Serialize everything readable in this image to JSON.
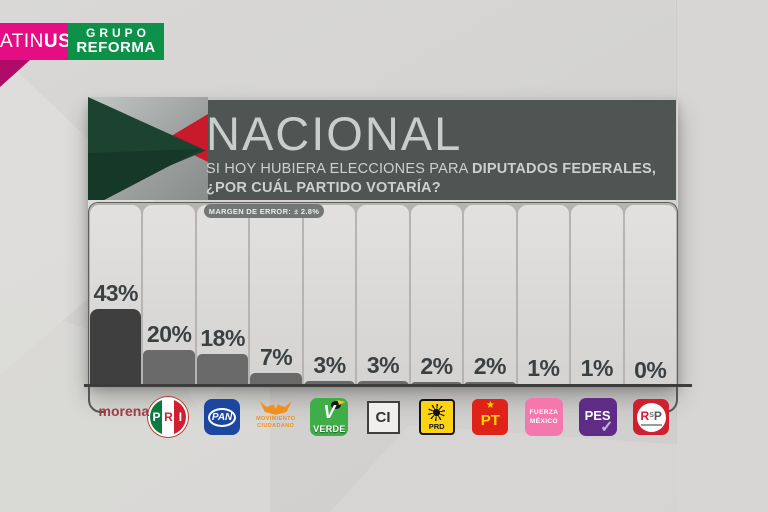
{
  "branding": {
    "latinus": {
      "text_regular": "ATIN",
      "text_bold": "US"
    },
    "grupo_reforma": {
      "top": "GRUPO",
      "bottom": "REFORMA"
    }
  },
  "header": {
    "title": "NACIONAL",
    "subtitle_regular": "SI HOY HUBIERA ELECCIONES PARA ",
    "subtitle_bold": "DIPUTADOS FEDERALES,",
    "subtitle_line2": "¿POR CUÁL PARTIDO VOTARÍA?"
  },
  "chart_data": {
    "type": "bar",
    "title": "NACIONAL",
    "question": "SI HOY HUBIERA ELECCIONES PARA DIPUTADOS FEDERALES, ¿POR CUÁL PARTIDO VOTARÍA?",
    "margin_of_error_label": "MARGEN DE ERROR:",
    "margin_of_error_value": "± 2.8%",
    "categories": [
      "morena",
      "PRI",
      "PAN",
      "Movimiento Ciudadano",
      "Verde",
      "CI",
      "PRD",
      "PT",
      "Fuerza México",
      "PES",
      "RSP"
    ],
    "values": [
      43,
      20,
      18,
      7,
      3,
      3,
      2,
      2,
      1,
      1,
      0
    ],
    "unit": "%",
    "ylim": [
      0,
      100
    ],
    "legend": "none",
    "grid": false,
    "highlight_category": "morena",
    "bar_color_highlight": "#3f3f3f",
    "bar_color_default": "#6a6a6a"
  },
  "party_logos": {
    "morena": {
      "label": "morena"
    },
    "pri": {
      "p": "P",
      "r": "R",
      "i": "I"
    },
    "pan": {
      "label": "PAN"
    },
    "movimiento_ciudadano": {
      "line1": "MOVIMIENTO",
      "line2": "CIUDADANO"
    },
    "verde": {
      "v": "V",
      "label": "VERDE"
    },
    "ci": {
      "label": "CI"
    },
    "prd": {
      "label": "PRD"
    },
    "pt": {
      "star": "★",
      "label": "PT"
    },
    "fuerza_mexico": {
      "line1": "FUERZA",
      "line2": "MÉXICO"
    },
    "pes": {
      "label": "PES",
      "check": "✓"
    },
    "rsp": {
      "r": "R",
      "s": "S",
      "p": "P"
    }
  }
}
